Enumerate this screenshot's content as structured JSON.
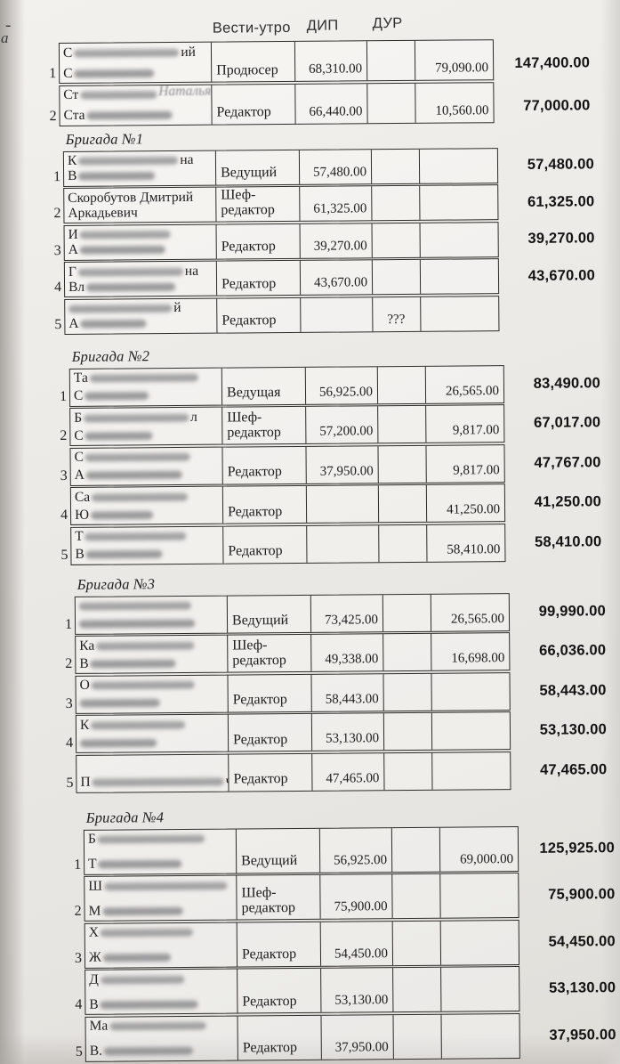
{
  "page": {
    "margin_fragments": [
      "-",
      "а"
    ],
    "column_headers": [
      "Вести-утро",
      "ДИП",
      "ДУР"
    ]
  },
  "tables": [
    {
      "title": "",
      "rows": [
        {
          "num": "1",
          "name_lines": [
            {
              "pre": "С",
              "blur": 118,
              "post": "ий",
              "faint": false
            },
            {
              "pre": "С",
              "blur": 90,
              "post": "",
              "faint": false
            }
          ],
          "position": "Продюсер",
          "vesti": "68,310.00",
          "dip": "",
          "dur": "79,090.00",
          "total": "147,400.00"
        },
        {
          "num": "2",
          "name_lines": [
            {
              "pre": "Ст",
              "blur": 86,
              "post": "Наталья",
              "faint": true
            },
            {
              "pre": "Ста",
              "blur": 96,
              "post": "",
              "faint": false
            }
          ],
          "position": "Редактор",
          "vesti": "66,440.00",
          "dip": "",
          "dur": "10,560.00",
          "total": "77,000.00"
        }
      ]
    },
    {
      "title": "Бригада №1",
      "rows": [
        {
          "num": "1",
          "name_lines": [
            {
              "pre": "К",
              "blur": 112,
              "post": "на",
              "faint": false
            },
            {
              "pre": "В",
              "blur": 86,
              "post": "",
              "faint": false
            }
          ],
          "position": "Ведущий",
          "vesti": "57,480.00",
          "dip": "",
          "dur": "",
          "total": "57,480.00"
        },
        {
          "num": "2",
          "name_lines": [
            {
              "pre": "Скоробутов Дмитрий",
              "blur": 0,
              "post": "",
              "faint": false
            },
            {
              "pre": "Аркадьевич",
              "blur": 0,
              "post": "",
              "faint": false
            }
          ],
          "position": "Шеф-редактор",
          "vesti": "61,325.00",
          "dip": "",
          "dur": "",
          "total": "61,325.00"
        },
        {
          "num": "3",
          "name_lines": [
            {
              "pre": "И",
              "blur": 102,
              "post": "",
              "faint": false
            },
            {
              "pre": "А",
              "blur": 96,
              "post": "",
              "faint": false
            }
          ],
          "position": "Редактор",
          "vesti": "39,270.00",
          "dip": "",
          "dur": "",
          "total": "39,270.00"
        },
        {
          "num": "4",
          "name_lines": [
            {
              "pre": "Г",
              "blur": 118,
              "post": "на",
              "faint": false
            },
            {
              "pre": "Вл",
              "blur": 100,
              "post": "",
              "faint": false
            }
          ],
          "position": "Редактор",
          "vesti": "43,670.00",
          "dip": "",
          "dur": "",
          "total": "43,670.00"
        },
        {
          "num": "5",
          "name_lines": [
            {
              "pre": "",
              "blur": 116,
              "post": "й",
              "faint": false
            },
            {
              "pre": "А",
              "blur": 74,
              "post": "",
              "faint": false
            }
          ],
          "position": "Редактор",
          "vesti": "",
          "dip": "???",
          "dur": "",
          "total": ""
        }
      ]
    },
    {
      "title": "Бригада №2",
      "rows": [
        {
          "num": "1",
          "name_lines": [
            {
              "pre": "Та",
              "blur": 122,
              "post": "",
              "faint": false
            },
            {
              "pre": "С",
              "blur": 72,
              "post": "",
              "faint": false
            }
          ],
          "position": "Ведущая",
          "vesti": "56,925.00",
          "dip": "",
          "dur": "26,565.00",
          "total": "83,490.00"
        },
        {
          "num": "2",
          "name_lines": [
            {
              "pre": "Б",
              "blur": 118,
              "post": "л",
              "faint": false
            },
            {
              "pre": "С",
              "blur": 76,
              "post": "",
              "faint": false
            }
          ],
          "position": "Шеф-редактор",
          "vesti": "57,200.00",
          "dip": "",
          "dur": "9,817.00",
          "total": "67,017.00"
        },
        {
          "num": "3",
          "name_lines": [
            {
              "pre": "С",
              "blur": 118,
              "post": "",
              "faint": false
            },
            {
              "pre": "А",
              "blur": 108,
              "post": "",
              "faint": false
            }
          ],
          "position": "Редактор",
          "vesti": "37,950.00",
          "dip": "",
          "dur": "9,817.00",
          "total": "47,767.00"
        },
        {
          "num": "4",
          "name_lines": [
            {
              "pre": "Са",
              "blur": 108,
              "post": "",
              "faint": false
            },
            {
              "pre": "Ю",
              "blur": 70,
              "post": "",
              "faint": false
            }
          ],
          "position": "Редактор",
          "vesti": "",
          "dip": "",
          "dur": "41,250.00",
          "total": "41,250.00"
        },
        {
          "num": "5",
          "name_lines": [
            {
              "pre": "Т",
              "blur": 114,
              "post": "",
              "faint": false
            },
            {
              "pre": "В",
              "blur": 86,
              "post": "",
              "faint": false
            }
          ],
          "position": "Редактор",
          "vesti": "",
          "dip": "",
          "dur": "58,410.00",
          "total": "58,410.00"
        }
      ]
    },
    {
      "title": "Бригада №3",
      "rows": [
        {
          "num": "1",
          "name_lines": [
            {
              "pre": "",
              "blur": 126,
              "post": "",
              "faint": false
            },
            {
              "pre": "",
              "blur": 130,
              "post": "",
              "faint": false
            }
          ],
          "position": "Ведущий",
          "vesti": "73,425.00",
          "dip": "",
          "dur": "26,565.00",
          "total": "99,990.00"
        },
        {
          "num": "2",
          "name_lines": [
            {
              "pre": "Ка",
              "blur": 110,
              "post": "",
              "faint": false
            },
            {
              "pre": "В",
              "blur": 96,
              "post": "",
              "faint": false
            }
          ],
          "position": "Шеф-редактор",
          "vesti": "49,338.00",
          "dip": "",
          "dur": "16,698.00",
          "total": "66,036.00"
        },
        {
          "num": "3",
          "name_lines": [
            {
              "pre": "О",
              "blur": 116,
              "post": "",
              "faint": false
            },
            {
              "pre": "",
              "blur": 90,
              "post": "",
              "faint": false
            }
          ],
          "position": "Редактор",
          "vesti": "58,443.00",
          "dip": "",
          "dur": "",
          "total": "58,443.00"
        },
        {
          "num": "4",
          "name_lines": [
            {
              "pre": "К",
              "blur": 106,
              "post": "",
              "faint": false
            },
            {
              "pre": "",
              "blur": 86,
              "post": "",
              "faint": false
            }
          ],
          "position": "Редактор",
          "vesti": "53,130.00",
          "dip": "",
          "dur": "",
          "total": "53,130.00"
        },
        {
          "num": "5",
          "name_lines": [
            {
              "pre": "П",
              "blur": 148,
              "post": "ч",
              "faint": false
            }
          ],
          "position": "Редактор",
          "vesti": "47,465.00",
          "dip": "",
          "dur": "",
          "total": "47,465.00"
        }
      ]
    },
    {
      "title": "Бригада №4",
      "rows": [
        {
          "num": "1",
          "name_lines": [
            {
              "pre": "Б",
              "blur": 120,
              "post": "",
              "faint": false
            },
            {
              "pre": "Т",
              "blur": 94,
              "post": "",
              "faint": false
            }
          ],
          "position": "Ведущий",
          "vesti": "56,925.00",
          "dip": "",
          "dur": "69,000.00",
          "total": "125,925.00"
        },
        {
          "num": "2",
          "name_lines": [
            {
              "pre": "Ш",
              "blur": 138,
              "post": "",
              "faint": false
            },
            {
              "pre": "М",
              "blur": 90,
              "post": "",
              "faint": false
            }
          ],
          "position": "Шеф-редактор",
          "vesti": "75,900.00",
          "dip": "",
          "dur": "",
          "total": "75,900.00"
        },
        {
          "num": "3",
          "name_lines": [
            {
              "pre": "Х",
              "blur": 104,
              "post": "",
              "faint": false
            },
            {
              "pre": "Ж",
              "blur": 76,
              "post": "",
              "faint": false
            }
          ],
          "position": "Редактор",
          "vesti": "54,450.00",
          "dip": "",
          "dur": "",
          "total": "54,450.00"
        },
        {
          "num": "4",
          "name_lines": [
            {
              "pre": "Д",
              "blur": 94,
              "post": "",
              "faint": false
            },
            {
              "pre": "В",
              "blur": 110,
              "post": "",
              "faint": false
            }
          ],
          "position": "Редактор",
          "vesti": "53,130.00",
          "dip": "",
          "dur": "",
          "total": "53,130.00"
        },
        {
          "num": "5",
          "name_lines": [
            {
              "pre": "Ма",
              "blur": 108,
              "post": "",
              "faint": false
            },
            {
              "pre": "В.",
              "blur": 100,
              "post": "",
              "faint": false
            }
          ],
          "position": "Редактор",
          "vesti": "37,950.00",
          "dip": "",
          "dur": "",
          "total": "37,950.00"
        }
      ]
    }
  ]
}
